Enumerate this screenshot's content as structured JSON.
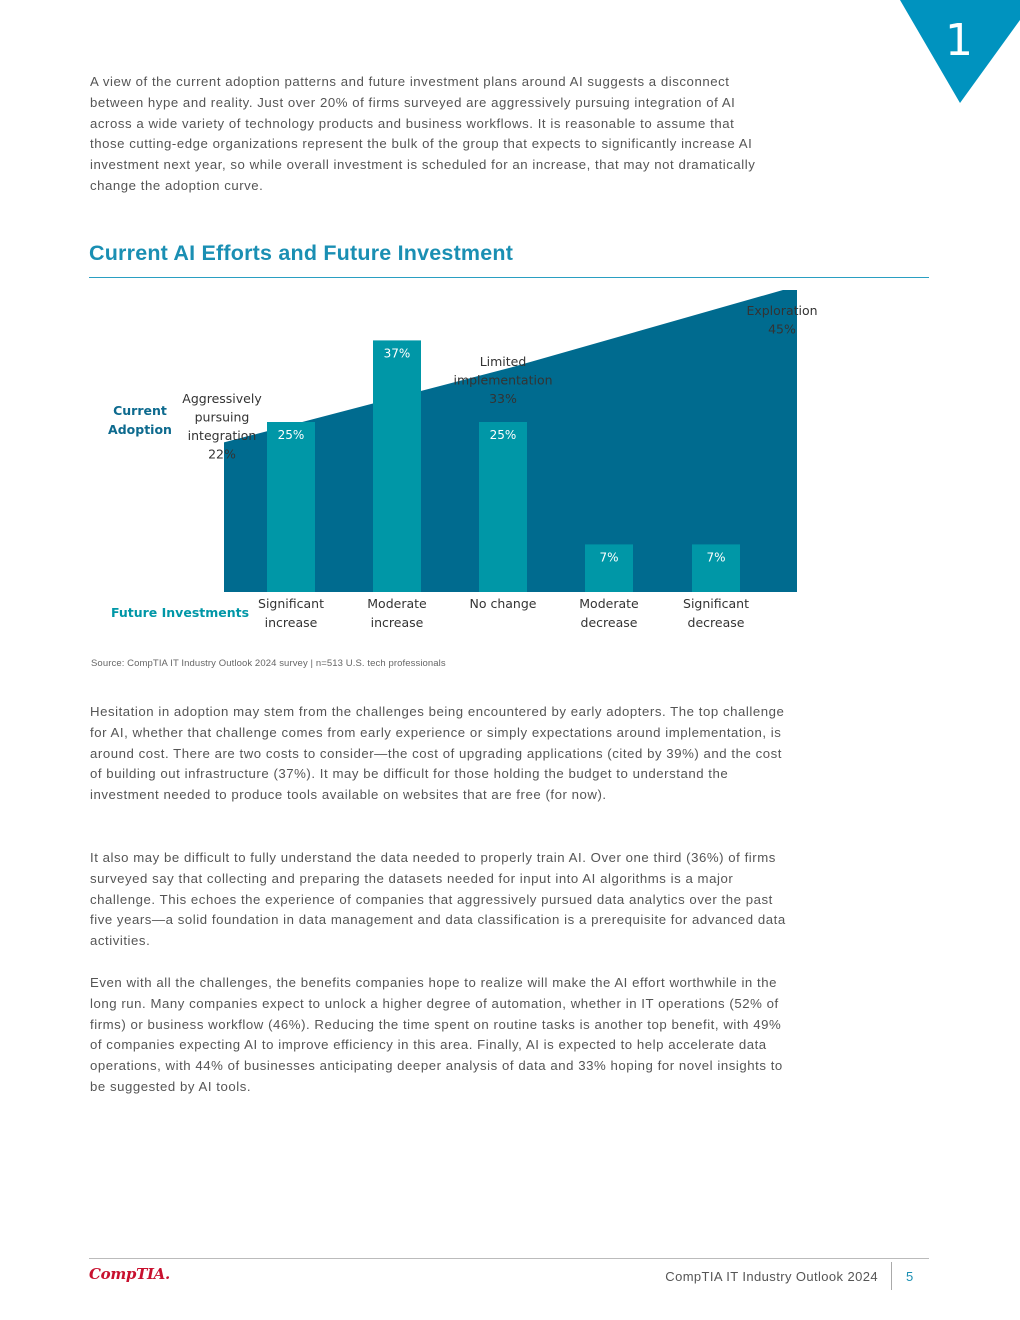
{
  "chapter_number": "1",
  "intro_paragraph": "A view of the current adoption patterns and future investment plans around AI suggests a disconnect between hype and reality. Just over 20% of firms surveyed are aggressively pursuing integration of AI across a wide variety of technology products and business workflows. It is reasonable to assume that those cutting-edge organizations represent the bulk of the group that expects to significantly increase AI investment next year, so while overall investment is scheduled for an increase, that may not dramatically change the adoption curve.",
  "section_title": "Current AI Efforts and Future Investment",
  "chart_data": {
    "type": "bar",
    "title": "Current AI Efforts and Future Investment",
    "current_adoption": {
      "row_label": [
        "Current",
        "Adoption"
      ],
      "color": "#006b8f",
      "points": [
        {
          "label": [
            "Aggressively",
            "pursuing",
            "integration"
          ],
          "value": 22,
          "value_label": "22%"
        },
        {
          "label": [
            "Limited",
            "implementation"
          ],
          "value": 33,
          "value_label": "33%"
        },
        {
          "label": [
            "Exploration"
          ],
          "value": 45,
          "value_label": "45%"
        }
      ]
    },
    "future_investments": {
      "row_label": "Future Investments",
      "color": "#0097a7",
      "categories": [
        [
          "Significant",
          "increase"
        ],
        [
          "Moderate",
          "increase"
        ],
        [
          "No change"
        ],
        [
          "Moderate",
          "decrease"
        ],
        [
          "Significant",
          "decrease"
        ]
      ],
      "values": [
        25,
        37,
        25,
        7,
        7
      ],
      "value_labels": [
        "25%",
        "37%",
        "25%",
        "7%",
        "7%"
      ]
    }
  },
  "source": "Source: CompTIA IT Industry Outlook 2024 survey | n=513 U.S. tech professionals",
  "body_paragraphs": [
    "Hesitation in adoption may stem from the challenges being encountered by early adopters. The top challenge for AI, whether that challenge comes from early experience or simply expectations around implementation, is around cost. There are two costs to consider—the cost of upgrading applications (cited by 39%) and the cost of building out infrastructure (37%). It may be difficult for those holding the budget to understand the investment needed to produce tools available on websites that are free (for now).",
    "It also may be difficult to fully understand the data needed to properly train AI. Over one third (36%) of firms surveyed say that collecting and preparing the datasets needed for input into AI algorithms is a major challenge. This echoes the experience of companies that aggressively pursued data analytics over the past five years—a solid foundation in data management and data classification is a prerequisite for advanced data activities.",
    "Even with all the challenges, the benefits companies hope to realize will make the AI effort worthwhile in the long run. Many companies expect to unlock a higher degree of automation, whether in IT operations (52% of firms) or business workflow (46%). Reducing the time spent on routine tasks is another top benefit, with 49% of companies expecting AI to improve efficiency in this area. Finally, AI is expected to help accelerate data operations, with 44% of businesses anticipating deeper analysis of data and 33% hoping for novel insights to be suggested by AI tools."
  ],
  "footer": {
    "logo_text": "CompTIA.",
    "doc_title": "CompTIA IT Industry Outlook 2024",
    "page_number": "5"
  }
}
